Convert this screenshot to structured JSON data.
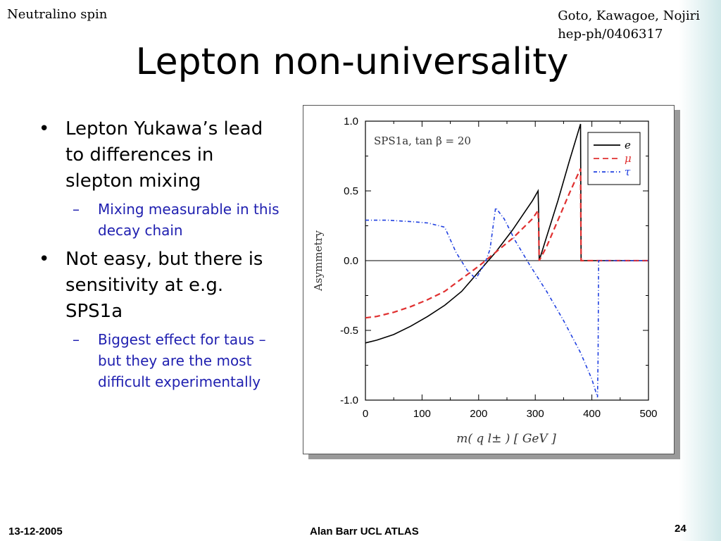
{
  "header": {
    "left": "Neutralino spin",
    "right_line1": "Goto, Kawagoe, Nojiri",
    "right_line2": "hep-ph/0406317"
  },
  "title": "Lepton non-universality",
  "bullets": [
    {
      "text": "Lepton Yukawa’s lead to differences in slepton mixing",
      "sub": "Mixing measurable in this decay chain"
    },
    {
      "text": "Not easy, but there is sensitivity at e.g. SPS1a",
      "sub": "Biggest effect for taus – but they are the most difficult experimentally"
    }
  ],
  "footer": {
    "date": "13-12-2005",
    "center": "Alan Barr   UCL ATLAS",
    "page": "24"
  },
  "chart_data": {
    "type": "line",
    "annotation": "SPS1a, tan β = 20",
    "xlabel": "m( q l± )  [ GeV ]",
    "ylabel": "Asymmetry",
    "xlim": [
      0,
      500
    ],
    "ylim": [
      -1.0,
      1.0
    ],
    "xticks": [
      "0",
      "100",
      "200",
      "300",
      "400",
      "500"
    ],
    "yticks": [
      "1.0",
      "0.5",
      "0.0",
      "-0.5",
      "-1.0"
    ],
    "legend_position": "top-right",
    "grid": false,
    "series": [
      {
        "name": "e",
        "color": "#000000",
        "style": "solid",
        "points": [
          [
            0,
            -0.59
          ],
          [
            20,
            -0.57
          ],
          [
            50,
            -0.53
          ],
          [
            80,
            -0.47
          ],
          [
            110,
            -0.4
          ],
          [
            140,
            -0.32
          ],
          [
            170,
            -0.22
          ],
          [
            200,
            -0.08
          ],
          [
            230,
            0.06
          ],
          [
            260,
            0.22
          ],
          [
            280,
            0.34
          ],
          [
            295,
            0.43
          ],
          [
            305,
            0.5
          ],
          [
            306,
            0.35
          ],
          [
            307,
            0.0
          ],
          [
            320,
            0.17
          ],
          [
            340,
            0.43
          ],
          [
            360,
            0.71
          ],
          [
            380,
            0.98
          ],
          [
            381,
            0.0
          ],
          [
            500,
            0.0
          ]
        ]
      },
      {
        "name": "μ",
        "color": "#e03030",
        "style": "dashed",
        "points": [
          [
            0,
            -0.41
          ],
          [
            20,
            -0.4
          ],
          [
            50,
            -0.37
          ],
          [
            80,
            -0.33
          ],
          [
            110,
            -0.28
          ],
          [
            140,
            -0.22
          ],
          [
            170,
            -0.13
          ],
          [
            200,
            -0.04
          ],
          [
            230,
            0.06
          ],
          [
            260,
            0.16
          ],
          [
            280,
            0.24
          ],
          [
            295,
            0.3
          ],
          [
            305,
            0.36
          ],
          [
            306,
            0.25
          ],
          [
            307,
            0.0
          ],
          [
            320,
            0.1
          ],
          [
            340,
            0.29
          ],
          [
            360,
            0.48
          ],
          [
            380,
            0.66
          ],
          [
            381,
            0.0
          ],
          [
            500,
            0.0
          ]
        ]
      },
      {
        "name": "τ",
        "color": "#2040e0",
        "style": "dashdot",
        "points": [
          [
            0,
            0.29
          ],
          [
            40,
            0.29
          ],
          [
            80,
            0.28
          ],
          [
            110,
            0.27
          ],
          [
            140,
            0.24
          ],
          [
            160,
            0.06
          ],
          [
            180,
            -0.07
          ],
          [
            195,
            -0.13
          ],
          [
            210,
            -0.03
          ],
          [
            220,
            0.08
          ],
          [
            230,
            0.38
          ],
          [
            245,
            0.3
          ],
          [
            265,
            0.14
          ],
          [
            290,
            -0.03
          ],
          [
            320,
            -0.22
          ],
          [
            350,
            -0.43
          ],
          [
            380,
            -0.66
          ],
          [
            400,
            -0.85
          ],
          [
            410,
            -0.98
          ],
          [
            411,
            -0.7
          ],
          [
            412,
            0.0
          ],
          [
            500,
            0.0
          ]
        ]
      }
    ]
  }
}
